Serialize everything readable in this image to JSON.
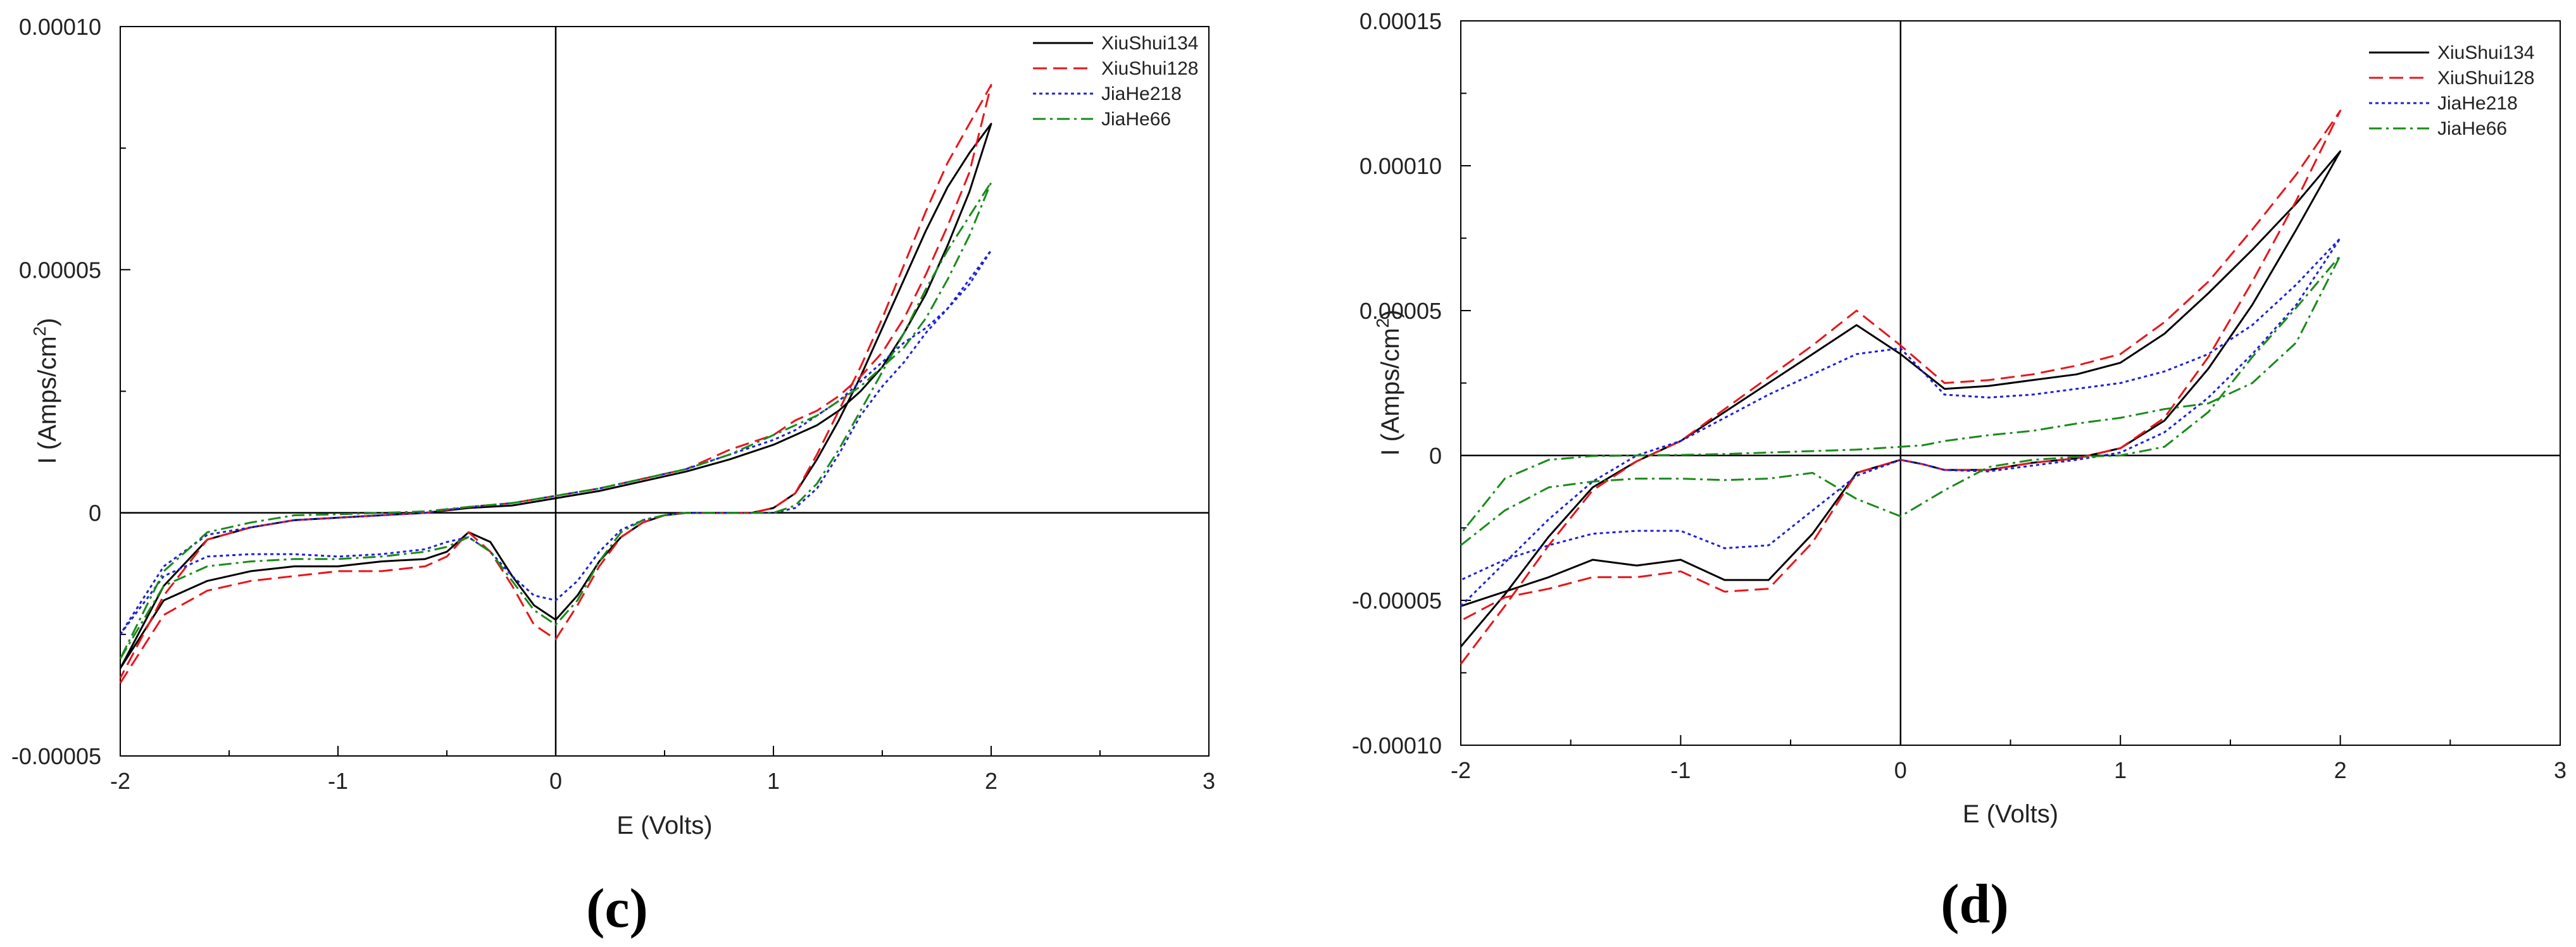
{
  "chart_data": [
    {
      "type": "line",
      "panel": "c",
      "panel_label": "(c)",
      "xlabel": "E (Volts)",
      "ylabel": "I (Amps/cm",
      "ylabel_sup": "2",
      "ylabel_close": ")",
      "xlim": [
        -2,
        3
      ],
      "ylim": [
        -5e-05,
        0.0001
      ],
      "xticks": [
        -2,
        -1,
        0,
        1,
        2,
        3
      ],
      "xtick_labels": [
        "-2",
        "-1",
        "0",
        "1",
        "2",
        "3"
      ],
      "yticks": [
        -5e-05,
        0,
        5e-05,
        0.0001
      ],
      "ytick_labels": [
        "-0.00005",
        "0",
        "0.00005",
        "0.00010"
      ],
      "legend": "top-right",
      "series": [
        {
          "name": "XiuShui134",
          "color": "#000000",
          "dash": "solid",
          "x": [
            -2,
            -1.8,
            -1.6,
            -1.4,
            -1.2,
            -1,
            -0.8,
            -0.6,
            -0.5,
            -0.4,
            -0.3,
            -0.2,
            -0.1,
            0,
            0.1,
            0.2,
            0.3,
            0.4,
            0.5,
            0.6,
            0.7,
            0.8,
            0.9,
            1,
            1.1,
            1.2,
            1.3,
            1.4,
            1.5,
            1.6,
            1.7,
            1.8,
            1.9,
            2,
            1.9,
            1.8,
            1.7,
            1.6,
            1.5,
            1.4,
            1.3,
            1.2,
            1.1,
            1,
            0.8,
            0.6,
            0.4,
            0.2,
            0,
            -0.2,
            -0.4,
            -0.6,
            -0.8,
            -1,
            -1.2,
            -1.4,
            -1.6,
            -1.8,
            -2
          ],
          "y": [
            -3.2e-05,
            -1.8e-05,
            -1.4e-05,
            -1.2e-05,
            -1.1e-05,
            -1.1e-05,
            -1e-05,
            -9.5e-06,
            -8e-06,
            -4e-06,
            -6e-06,
            -1.3e-05,
            -1.9e-05,
            -2.2e-05,
            -1.7e-05,
            -1e-05,
            -5e-06,
            -2e-06,
            -5e-07,
            0,
            0,
            0,
            0,
            1e-06,
            4e-06,
            1.1e-05,
            1.9e-05,
            2.8e-05,
            3.8e-05,
            4.8e-05,
            5.8e-05,
            6.7e-05,
            7.4e-05,
            8e-05,
            6.6e-05,
            5.5e-05,
            4.5e-05,
            3.7e-05,
            3e-05,
            2.5e-05,
            2.1e-05,
            1.8e-05,
            1.6e-05,
            1.4e-05,
            1.1e-05,
            8.5e-06,
            6.5e-06,
            4.5e-06,
            3e-06,
            1.5e-06,
            1e-06,
            0,
            -5e-07,
            -1e-06,
            -1.5e-06,
            -3e-06,
            -5.5e-06,
            -1.5e-05,
            -3.2e-05
          ]
        },
        {
          "name": "XiuShui128",
          "color": "#e8151b",
          "dash": "long-dash",
          "x": [
            -2,
            -1.8,
            -1.6,
            -1.4,
            -1.2,
            -1,
            -0.8,
            -0.6,
            -0.5,
            -0.4,
            -0.3,
            -0.2,
            -0.1,
            0,
            0.1,
            0.2,
            0.3,
            0.4,
            0.5,
            0.6,
            0.7,
            0.8,
            0.9,
            1,
            1.1,
            1.2,
            1.3,
            1.4,
            1.5,
            1.6,
            1.7,
            1.8,
            1.9,
            2,
            1.9,
            1.8,
            1.7,
            1.6,
            1.5,
            1.4,
            1.3,
            1.2,
            1.1,
            1,
            0.8,
            0.6,
            0.4,
            0.2,
            0,
            -0.2,
            -0.4,
            -0.6,
            -0.8,
            -1,
            -1.2,
            -1.4,
            -1.6,
            -1.8,
            -2
          ],
          "y": [
            -3.5e-05,
            -2.1e-05,
            -1.6e-05,
            -1.4e-05,
            -1.3e-05,
            -1.2e-05,
            -1.2e-05,
            -1.1e-05,
            -9e-06,
            -4e-06,
            -8e-06,
            -1.5e-05,
            -2.3e-05,
            -2.6e-05,
            -1.9e-05,
            -1.1e-05,
            -5e-06,
            -2e-06,
            -5e-07,
            0,
            0,
            0,
            0,
            1e-06,
            4e-06,
            1.2e-05,
            2.1e-05,
            3e-05,
            4e-05,
            5.1e-05,
            6.2e-05,
            7.2e-05,
            8e-05,
            8.8e-05,
            7e-05,
            5.9e-05,
            4.9e-05,
            4e-05,
            3.3e-05,
            2.8e-05,
            2.4e-05,
            2.1e-05,
            1.9e-05,
            1.6e-05,
            1.3e-05,
            9e-06,
            7e-06,
            5e-06,
            3.5e-06,
            2e-06,
            1.2e-06,
            0,
            -5e-07,
            -1e-06,
            -1.5e-06,
            -3e-06,
            -5.5e-06,
            -1.7e-05,
            -3.4e-05
          ]
        },
        {
          "name": "JiaHe218",
          "color": "#1d21d6",
          "dash": "dotted",
          "x": [
            -2,
            -1.8,
            -1.6,
            -1.4,
            -1.2,
            -1,
            -0.8,
            -0.6,
            -0.5,
            -0.4,
            -0.3,
            -0.2,
            -0.1,
            0,
            0.1,
            0.2,
            0.3,
            0.4,
            0.5,
            0.6,
            0.7,
            0.8,
            0.9,
            1,
            1.1,
            1.2,
            1.3,
            1.4,
            1.5,
            1.6,
            1.7,
            1.8,
            1.9,
            2,
            1.9,
            1.8,
            1.7,
            1.6,
            1.5,
            1.4,
            1.3,
            1.2,
            1.1,
            1,
            0.8,
            0.6,
            0.4,
            0.2,
            0,
            -0.2,
            -0.4,
            -0.6,
            -0.8,
            -1,
            -1.2,
            -1.4,
            -1.6,
            -1.8,
            -2
          ],
          "y": [
            -2.5e-05,
            -1.3e-05,
            -9e-06,
            -8.5e-06,
            -8.5e-06,
            -9e-06,
            -8.5e-06,
            -7.5e-06,
            -6e-06,
            -5e-06,
            -8e-06,
            -1.3e-05,
            -1.7e-05,
            -1.8e-05,
            -1.4e-05,
            -8e-06,
            -3.5e-06,
            -1.5e-06,
            -5e-07,
            0,
            0,
            0,
            0,
            0,
            1e-06,
            5e-06,
            1.2e-05,
            2e-05,
            2.6e-05,
            3.1e-05,
            3.7e-05,
            4.2e-05,
            4.8e-05,
            5.4e-05,
            4.7e-05,
            4.2e-05,
            3.8e-05,
            3.5e-05,
            3.1e-05,
            2.7e-05,
            2.3e-05,
            2e-05,
            1.7e-05,
            1.5e-05,
            1.2e-05,
            9e-06,
            7e-06,
            5e-06,
            3.5e-06,
            2e-06,
            1.2e-06,
            0,
            -5e-07,
            -1e-06,
            -1.5e-06,
            -3e-06,
            -4.5e-06,
            -1.1e-05,
            -2.5e-05
          ]
        },
        {
          "name": "JiaHe66",
          "color": "#1a8a1a",
          "dash": "dash-dot",
          "x": [
            -2,
            -1.8,
            -1.6,
            -1.4,
            -1.2,
            -1,
            -0.8,
            -0.6,
            -0.5,
            -0.4,
            -0.3,
            -0.2,
            -0.1,
            0,
            0.1,
            0.2,
            0.3,
            0.4,
            0.5,
            0.6,
            0.7,
            0.8,
            0.9,
            1,
            1.1,
            1.2,
            1.3,
            1.4,
            1.5,
            1.6,
            1.7,
            1.8,
            1.9,
            2,
            1.9,
            1.8,
            1.7,
            1.6,
            1.5,
            1.4,
            1.3,
            1.2,
            1.1,
            1,
            0.8,
            0.6,
            0.4,
            0.2,
            0,
            -0.2,
            -0.4,
            -0.6,
            -0.8,
            -1,
            -1.2,
            -1.4,
            -1.6,
            -1.8,
            -2
          ],
          "y": [
            -3e-05,
            -1.5e-05,
            -1.1e-05,
            -1e-05,
            -9.5e-06,
            -9.5e-06,
            -9e-06,
            -8e-06,
            -7e-06,
            -5e-06,
            -8e-06,
            -1.4e-05,
            -2e-05,
            -2.3e-05,
            -1.8e-05,
            -1e-05,
            -4e-06,
            -1.5e-06,
            -5e-07,
            0,
            0,
            0,
            0,
            0,
            1.5e-06,
            6e-06,
            1.3e-05,
            2.1e-05,
            2.9e-05,
            3.7e-05,
            4.6e-05,
            5.4e-05,
            6.1e-05,
            6.8e-05,
            5.7e-05,
            4.8e-05,
            4e-05,
            3.4e-05,
            3e-05,
            2.6e-05,
            2.3e-05,
            2e-05,
            1.8e-05,
            1.6e-05,
            1.2e-05,
            9e-06,
            7e-06,
            5e-06,
            3.5e-06,
            2e-06,
            1.2e-06,
            3e-07,
            0,
            -3e-07,
            -5e-07,
            -2e-06,
            -4e-06,
            -1.2e-05,
            -3e-05
          ]
        }
      ]
    },
    {
      "type": "line",
      "panel": "d",
      "panel_label": "(d)",
      "xlabel": "E (Volts)",
      "ylabel": "I (Amps/cm",
      "ylabel_sup": "2",
      "ylabel_close": ")",
      "xlim": [
        -2,
        3
      ],
      "ylim": [
        -0.0001,
        0.00015
      ],
      "xticks": [
        -2,
        -1,
        0,
        1,
        2,
        3
      ],
      "xtick_labels": [
        "-2",
        "-1",
        "0",
        "1",
        "2",
        "3"
      ],
      "yticks": [
        -0.0001,
        -5e-05,
        0,
        5e-05,
        0.0001,
        0.00015
      ],
      "ytick_labels": [
        "-0.00010",
        "-0.00005",
        "0",
        "0.00005",
        "0.00010",
        "0.00015"
      ],
      "legend": "top-right",
      "series": [
        {
          "name": "XiuShui134",
          "color": "#000000",
          "dash": "solid",
          "x": [
            -2,
            -1.8,
            -1.6,
            -1.4,
            -1.2,
            -1,
            -0.8,
            -0.6,
            -0.4,
            -0.2,
            0,
            0.2,
            0.4,
            0.6,
            0.8,
            1,
            1.2,
            1.4,
            1.6,
            1.8,
            2,
            1.8,
            1.6,
            1.4,
            1.2,
            1,
            0.8,
            0.6,
            0.4,
            0.2,
            0.1,
            0,
            -0.2,
            -0.4,
            -0.6,
            -0.8,
            -1,
            -1.2,
            -1.4,
            -1.6,
            -1.8,
            -2
          ],
          "y": [
            -6.6e-05,
            -4.8e-05,
            -2.8e-05,
            -1.1e-05,
            -2e-06,
            5e-06,
            1.5e-05,
            2.5e-05,
            3.5e-05,
            4.5e-05,
            3.5e-05,
            2.3e-05,
            2.4e-05,
            2.6e-05,
            2.8e-05,
            3.2e-05,
            4.2e-05,
            5.6e-05,
            7.1e-05,
            8.7e-05,
            0.000105,
            7.8e-05,
            5.2e-05,
            3e-05,
            1.2e-05,
            2.5e-06,
            -1e-06,
            -2.5e-06,
            -5e-06,
            -5e-06,
            -3e-06,
            -1.5e-06,
            -6e-06,
            -2.7e-05,
            -4.3e-05,
            -4.3e-05,
            -3.6e-05,
            -3.8e-05,
            -3.6e-05,
            -4.2e-05,
            -4.7e-05,
            -5.2e-05
          ]
        },
        {
          "name": "XiuShui128",
          "color": "#e8151b",
          "dash": "long-dash",
          "x": [
            -2,
            -1.8,
            -1.6,
            -1.4,
            -1.2,
            -1,
            -0.8,
            -0.6,
            -0.4,
            -0.2,
            0,
            0.2,
            0.4,
            0.6,
            0.8,
            1,
            1.2,
            1.4,
            1.6,
            1.8,
            2,
            1.8,
            1.6,
            1.4,
            1.2,
            1,
            0.8,
            0.6,
            0.4,
            0.2,
            0.1,
            0,
            -0.2,
            -0.4,
            -0.6,
            -0.8,
            -1,
            -1.2,
            -1.4,
            -1.6,
            -1.8,
            -2
          ],
          "y": [
            -7.2e-05,
            -5.2e-05,
            -3.1e-05,
            -1.2e-05,
            -2e-06,
            5e-06,
            1.6e-05,
            2.7e-05,
            3.8e-05,
            5e-05,
            3.8e-05,
            2.5e-05,
            2.6e-05,
            2.8e-05,
            3.1e-05,
            3.5e-05,
            4.6e-05,
            6e-05,
            7.8e-05,
            9.7e-05,
            0.000119,
            8.8e-05,
            6e-05,
            3.4e-05,
            1.3e-05,
            2.5e-06,
            -1e-06,
            -2.5e-06,
            -5e-06,
            -5e-06,
            -3e-06,
            -1.5e-06,
            -6e-06,
            -3e-05,
            -4.6e-05,
            -4.7e-05,
            -4e-05,
            -4.2e-05,
            -4.2e-05,
            -4.6e-05,
            -4.9e-05,
            -5.7e-05
          ]
        },
        {
          "name": "JiaHe218",
          "color": "#1d21d6",
          "dash": "dotted",
          "x": [
            -2,
            -1.8,
            -1.6,
            -1.4,
            -1.2,
            -1,
            -0.8,
            -0.6,
            -0.4,
            -0.2,
            0,
            0.2,
            0.4,
            0.6,
            0.8,
            1,
            1.2,
            1.4,
            1.6,
            1.8,
            2,
            1.8,
            1.6,
            1.4,
            1.2,
            1,
            0.8,
            0.6,
            0.4,
            0.2,
            0.1,
            0,
            -0.2,
            -0.4,
            -0.6,
            -0.8,
            -1,
            -1.2,
            -1.4,
            -1.6,
            -1.8,
            -2
          ],
          "y": [
            -5.2e-05,
            -3.7e-05,
            -2.2e-05,
            -9e-06,
            0,
            5e-06,
            1.3e-05,
            2.1e-05,
            2.8e-05,
            3.5e-05,
            3.7e-05,
            2.1e-05,
            2e-05,
            2.1e-05,
            2.3e-05,
            2.5e-05,
            2.9e-05,
            3.5e-05,
            4.5e-05,
            5.9e-05,
            7.5e-05,
            5.2e-05,
            3.5e-05,
            2e-05,
            8e-06,
            1e-06,
            -1.5e-06,
            -3.5e-06,
            -5.5e-06,
            -5e-06,
            -3e-06,
            -1.5e-06,
            -7e-06,
            -1.9e-05,
            -3.1e-05,
            -3.2e-05,
            -2.6e-05,
            -2.6e-05,
            -2.7e-05,
            -3.1e-05,
            -3.6e-05,
            -4.3e-05
          ]
        },
        {
          "name": "JiaHe66",
          "color": "#1a8a1a",
          "dash": "dash-dot",
          "x": [
            -2,
            -1.8,
            -1.6,
            -1.4,
            -1.2,
            -1,
            -0.8,
            -0.6,
            -0.4,
            -0.2,
            0,
            0.2,
            0.4,
            0.6,
            0.8,
            1,
            1.2,
            1.4,
            1.6,
            1.8,
            2,
            1.8,
            1.6,
            1.4,
            1.2,
            1,
            0.8,
            0.6,
            0.4,
            0.2,
            0.1,
            0,
            -0.2,
            -0.4,
            -0.6,
            -0.8,
            -1,
            -1.2,
            -1.4,
            -1.6,
            -1.8,
            -2
          ],
          "y": [
            -3.1e-05,
            -1.9e-05,
            -1.1e-05,
            -9e-06,
            -8e-06,
            -8e-06,
            -8.5e-06,
            -8e-06,
            -6e-06,
            -1.5e-05,
            -2.1e-05,
            -1.2e-05,
            -4e-06,
            -1.5e-06,
            -5e-07,
            0,
            3e-06,
            1.5e-05,
            3.4e-05,
            5.1e-05,
            6.9e-05,
            3.9e-05,
            2.5e-05,
            1.8e-05,
            1.6e-05,
            1.3e-05,
            1.1e-05,
            8.5e-06,
            7e-06,
            5e-06,
            3.5e-06,
            3e-06,
            2e-06,
            1.5e-06,
            1e-06,
            5e-07,
            2e-07,
            0,
            -2e-07,
            -1.5e-06,
            -8e-06,
            -2.7e-05
          ]
        }
      ]
    }
  ]
}
